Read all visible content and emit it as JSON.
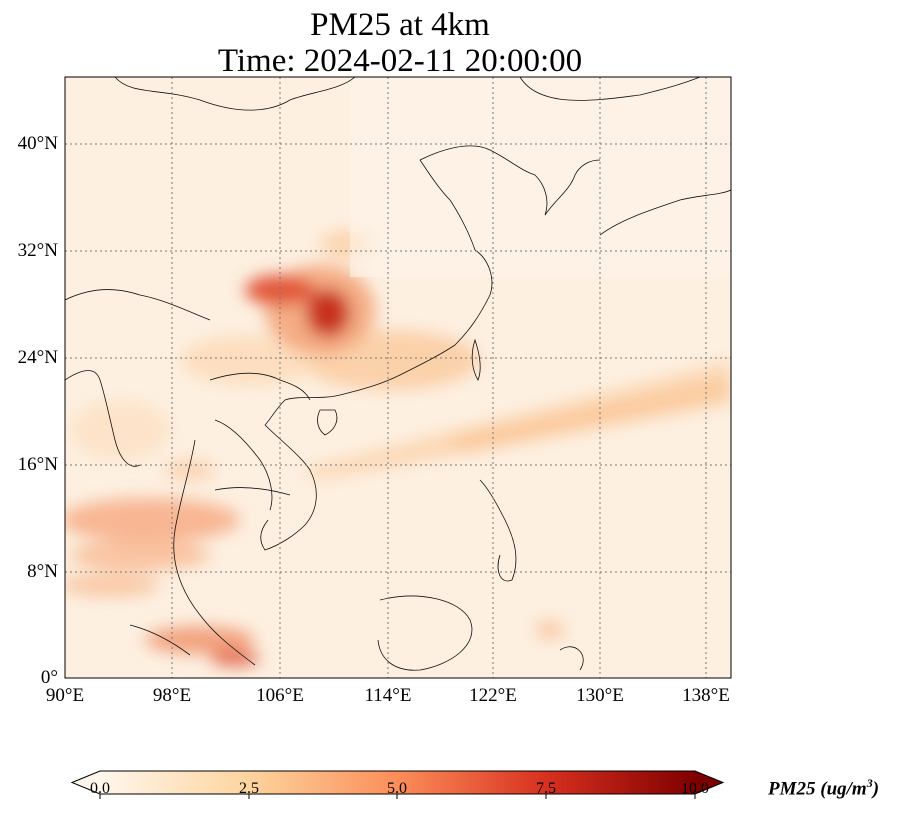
{
  "title": {
    "line1": "PM25 at 4km",
    "line2": "Time: 2024-02-11 20:00:00"
  },
  "axes": {
    "lon_ticks": [
      "90°E",
      "98°E",
      "106°E",
      "114°E",
      "122°E",
      "130°E",
      "138°E"
    ],
    "lat_ticks": [
      "40°N",
      "32°N",
      "24°N",
      "16°N",
      "8°N",
      "0°"
    ],
    "lon_range": [
      90,
      139
    ],
    "lat_range": [
      0,
      45
    ],
    "grid": "dotted"
  },
  "colorbar": {
    "label_main": "PM25 (ug/m",
    "label_sup": "3",
    "label_end": ")",
    "ticks": [
      "0.0",
      "2.5",
      "5.0",
      "7.5",
      "10.0"
    ],
    "range": [
      0,
      10
    ],
    "extend": "both",
    "colormap": "OrRd",
    "colors": [
      "#fff7ec",
      "#fdd49e",
      "#fc8d59",
      "#d7301f",
      "#7f0000"
    ]
  }
}
